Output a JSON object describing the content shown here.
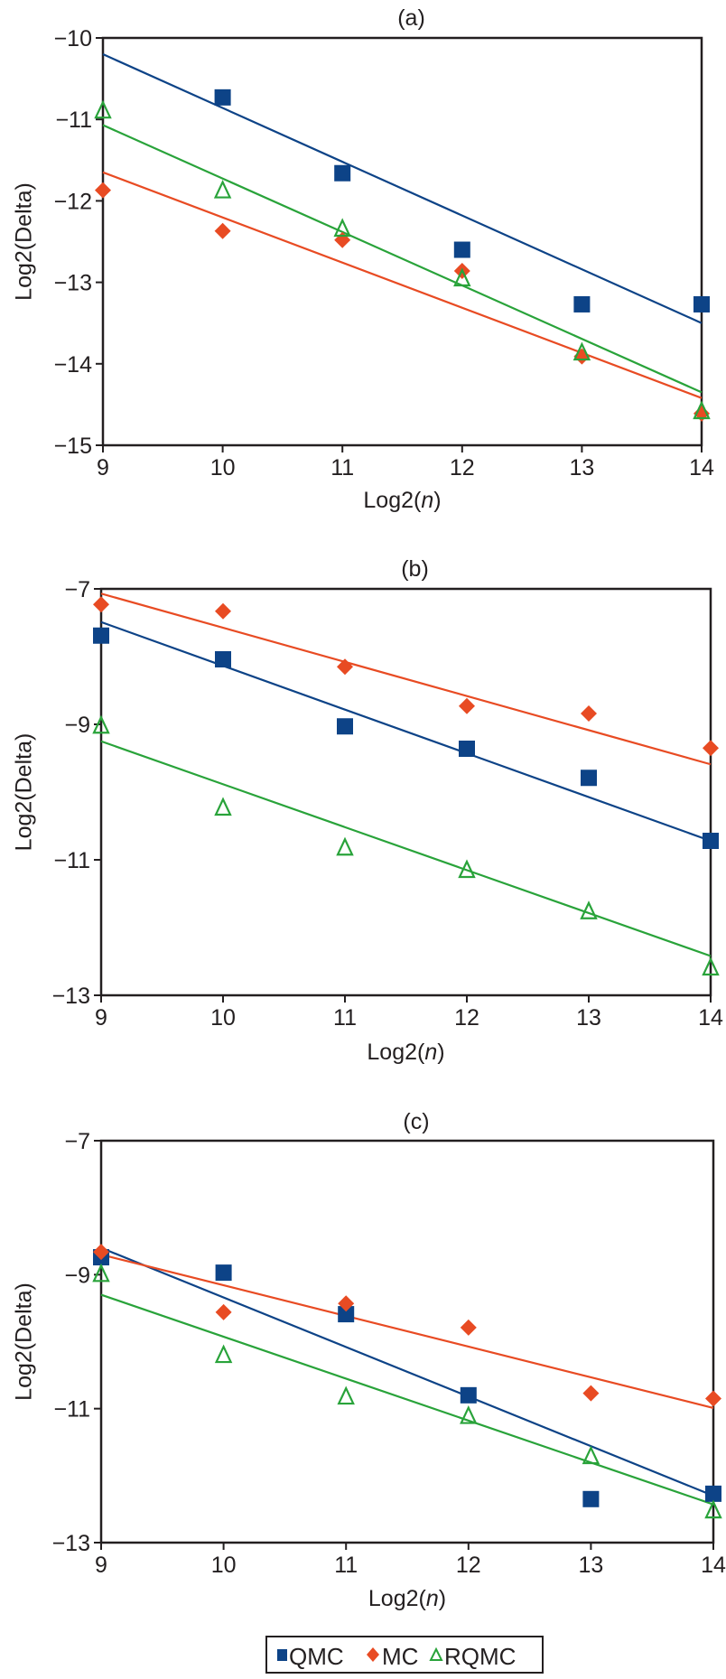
{
  "colors": {
    "QMC": "#0d4387",
    "MC": "#e84b23",
    "RQMC": "#29a33a",
    "axis": "#231f20"
  },
  "legend": {
    "items": [
      {
        "series": "QMC",
        "label": "QMC",
        "marker": "square"
      },
      {
        "series": "MC",
        "label": "MC",
        "marker": "diamond"
      },
      {
        "series": "RQMC",
        "label": "RQMC",
        "marker": "open-triangle"
      }
    ]
  },
  "chart_data": [
    {
      "type": "scatter",
      "title": "(a)",
      "xlabel_prefix": "Log2(",
      "xlabel_var": "n",
      "xlabel_suffix": ")",
      "ylabel": "Log2(Delta)",
      "xlim": [
        9,
        14
      ],
      "ylim": [
        -15,
        -10
      ],
      "xticks": [
        "9",
        "10",
        "11",
        "12",
        "13",
        "14"
      ],
      "yticks": [
        "−10",
        "−11",
        "−12",
        "−13",
        "−14",
        "−15"
      ],
      "ytick_values": [
        -10,
        -11,
        -12,
        -13,
        -14,
        -15
      ],
      "xtick_values": [
        9,
        10,
        11,
        12,
        13,
        14
      ],
      "series": [
        {
          "name": "QMC",
          "x": [
            10,
            11,
            12,
            13,
            14
          ],
          "y": [
            -10.73,
            -11.66,
            -12.6,
            -13.27,
            -13.27
          ],
          "trend": [
            [
              9,
              -10.2
            ],
            [
              14,
              -13.5
            ]
          ]
        },
        {
          "name": "MC",
          "x": [
            9,
            10,
            11,
            12,
            13,
            14
          ],
          "y": [
            -11.87,
            -12.37,
            -12.48,
            -12.86,
            -13.91,
            -14.61
          ],
          "trend": [
            [
              9,
              -11.65
            ],
            [
              14,
              -14.42
            ]
          ]
        },
        {
          "name": "RQMC",
          "x": [
            9,
            10,
            11,
            12,
            13,
            14
          ],
          "y": [
            -10.9,
            -11.88,
            -12.35,
            -12.96,
            -13.87,
            -14.59
          ],
          "trend": [
            [
              9,
              -11.07
            ],
            [
              14,
              -14.35
            ]
          ]
        }
      ]
    },
    {
      "type": "scatter",
      "title": "(b)",
      "xlabel_prefix": "Log2(",
      "xlabel_var": "n",
      "xlabel_suffix": ")",
      "ylabel": "Log2(Delta)",
      "xlim": [
        9,
        14
      ],
      "ylim": [
        -13,
        -7
      ],
      "xticks": [
        "9",
        "10",
        "11",
        "12",
        "13",
        "14"
      ],
      "yticks": [
        "−7",
        "−9",
        "−11",
        "−13"
      ],
      "ytick_values": [
        -7,
        -9,
        -11,
        -13
      ],
      "xtick_values": [
        9,
        10,
        11,
        12,
        13,
        14
      ],
      "series": [
        {
          "name": "QMC",
          "x": [
            9,
            10,
            11,
            12,
            13,
            14
          ],
          "y": [
            -7.69,
            -8.04,
            -9.03,
            -9.36,
            -9.79,
            -10.72
          ],
          "trend": [
            [
              9,
              -7.49
            ],
            [
              14,
              -10.72
            ]
          ]
        },
        {
          "name": "MC",
          "x": [
            9,
            10,
            11,
            12,
            13,
            14
          ],
          "y": [
            -7.23,
            -7.33,
            -8.15,
            -8.73,
            -8.84,
            -9.35
          ],
          "trend": [
            [
              9,
              -7.07
            ],
            [
              14,
              -9.59
            ]
          ]
        },
        {
          "name": "RQMC",
          "x": [
            9,
            10,
            11,
            12,
            13,
            14
          ],
          "y": [
            -9.03,
            -10.24,
            -10.83,
            -11.16,
            -11.77,
            -12.6
          ],
          "trend": [
            [
              9,
              -9.25
            ],
            [
              14,
              -12.42
            ]
          ]
        }
      ]
    },
    {
      "type": "scatter",
      "title": "(c)",
      "xlabel_prefix": "Log2(",
      "xlabel_var": "n",
      "xlabel_suffix": ")",
      "ylabel": "Log2(Delta)",
      "xlim": [
        9,
        14
      ],
      "ylim": [
        -13,
        -7
      ],
      "xticks": [
        "9",
        "10",
        "11",
        "12",
        "13",
        "14"
      ],
      "yticks": [
        "−7",
        "−9",
        "−11",
        "−13"
      ],
      "ytick_values": [
        -7,
        -9,
        -11,
        -13
      ],
      "xtick_values": [
        9,
        10,
        11,
        12,
        13,
        14
      ],
      "series": [
        {
          "name": "QMC",
          "x": [
            9,
            10,
            11,
            12,
            13,
            14
          ],
          "y": [
            -8.74,
            -8.97,
            -9.59,
            -10.8,
            -12.35,
            -12.27
          ],
          "trend": [
            [
              9,
              -8.6
            ],
            [
              14,
              -12.3
            ]
          ]
        },
        {
          "name": "MC",
          "x": [
            9,
            10,
            11,
            12,
            13,
            14
          ],
          "y": [
            -8.66,
            -9.56,
            -9.43,
            -9.79,
            -10.77,
            -10.85
          ],
          "trend": [
            [
              9,
              -8.7
            ],
            [
              14,
              -10.99
            ]
          ]
        },
        {
          "name": "RQMC",
          "x": [
            9,
            10,
            11,
            12,
            13,
            14
          ],
          "y": [
            -9.0,
            -10.21,
            -10.83,
            -11.12,
            -11.72,
            -12.53
          ],
          "trend": [
            [
              9,
              -9.3
            ],
            [
              14,
              -12.43
            ]
          ]
        }
      ]
    }
  ]
}
